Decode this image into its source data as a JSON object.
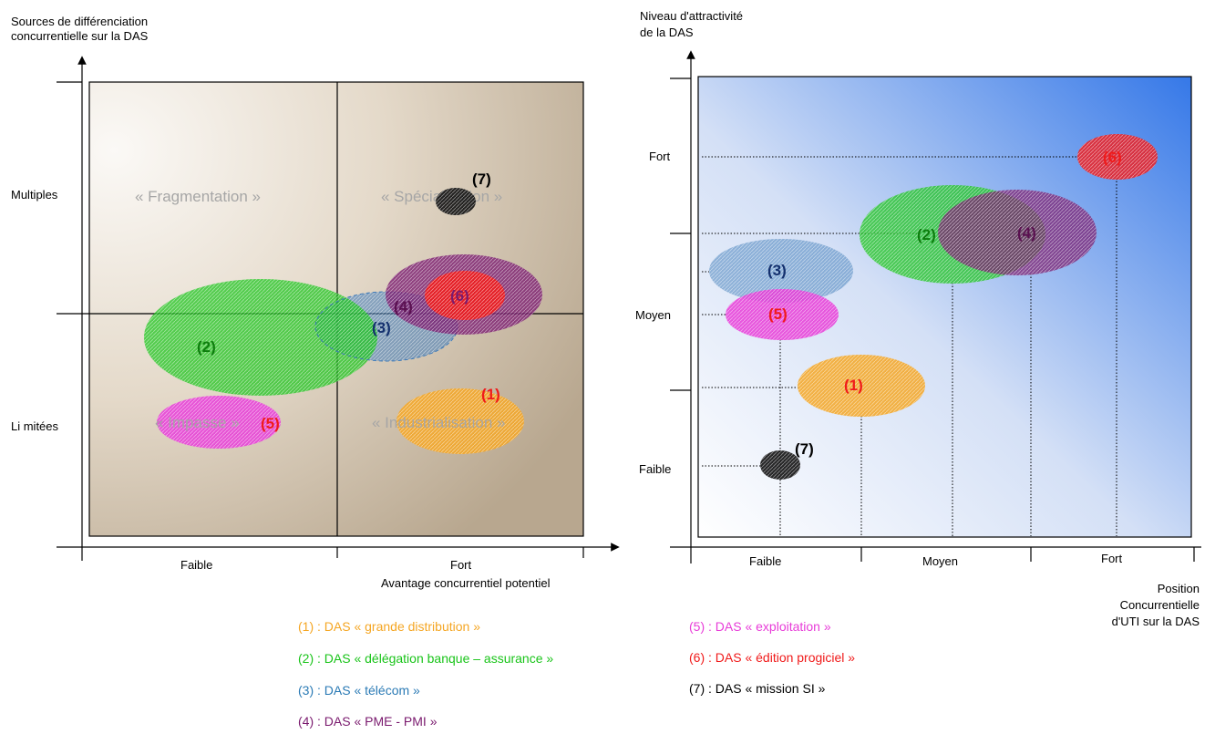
{
  "left": {
    "y_axis_title_1": "Sources de différenciation",
    "y_axis_title_2": "concurrentielle sur la DAS",
    "y_tick_multiples": "Multiples",
    "y_tick_limitees": "Li mitées",
    "x_tick_faible": "Faible",
    "x_tick_fort": "Fort",
    "x_axis_title": "Avantage concurrentiel potentiel",
    "quadrants": {
      "fragmentation": "« Fragmentation »",
      "specialisation": "« Spécialisation »",
      "impasse": "« Impasse »",
      "industrialisation": "« Industrialisation »"
    },
    "bubbles": {
      "b1": "(1)",
      "b2": "(2)",
      "b3": "(3)",
      "b4": "(4)",
      "b5": "(5)",
      "b6": "(6)",
      "b7": "(7)"
    }
  },
  "right": {
    "y_axis_title_1": "Niveau d'attractivité",
    "y_axis_title_2": "de la DAS",
    "y_tick_fort": "Fort",
    "y_tick_moyen": "Moyen",
    "y_tick_faible": "Faible",
    "x_tick_faible": "Faible",
    "x_tick_moyen": "Moyen",
    "x_tick_fort": "Fort",
    "x_axis_title_1": "Position",
    "x_axis_title_2": "Concurrentielle",
    "x_axis_title_3": "d'UTI sur la DAS",
    "bubbles": {
      "b1": "(1)",
      "b2": "(2)",
      "b3": "(3)",
      "b4": "(4)",
      "b5": "(5)",
      "b6": "(6)",
      "b7": "(7)"
    }
  },
  "legend": {
    "l1": "(1) : DAS « grande distribution »",
    "l2": "(2) : DAS « délégation banque – assurance »",
    "l3": "(3) : DAS « télécom »",
    "l4": "(4) : DAS « PME - PMI »",
    "l5": "(5) : DAS « exploitation »",
    "l6": "(6) : DAS « édition progiciel »",
    "l7": "(7) : DAS « mission SI »"
  },
  "colors": {
    "das1": "#f5a623",
    "das2": "#19c419",
    "das3": "#3c79b8",
    "das4": "#7a1a6e",
    "das5": "#e83cd8",
    "das6": "#f01a1a",
    "das7": "#000000"
  }
}
